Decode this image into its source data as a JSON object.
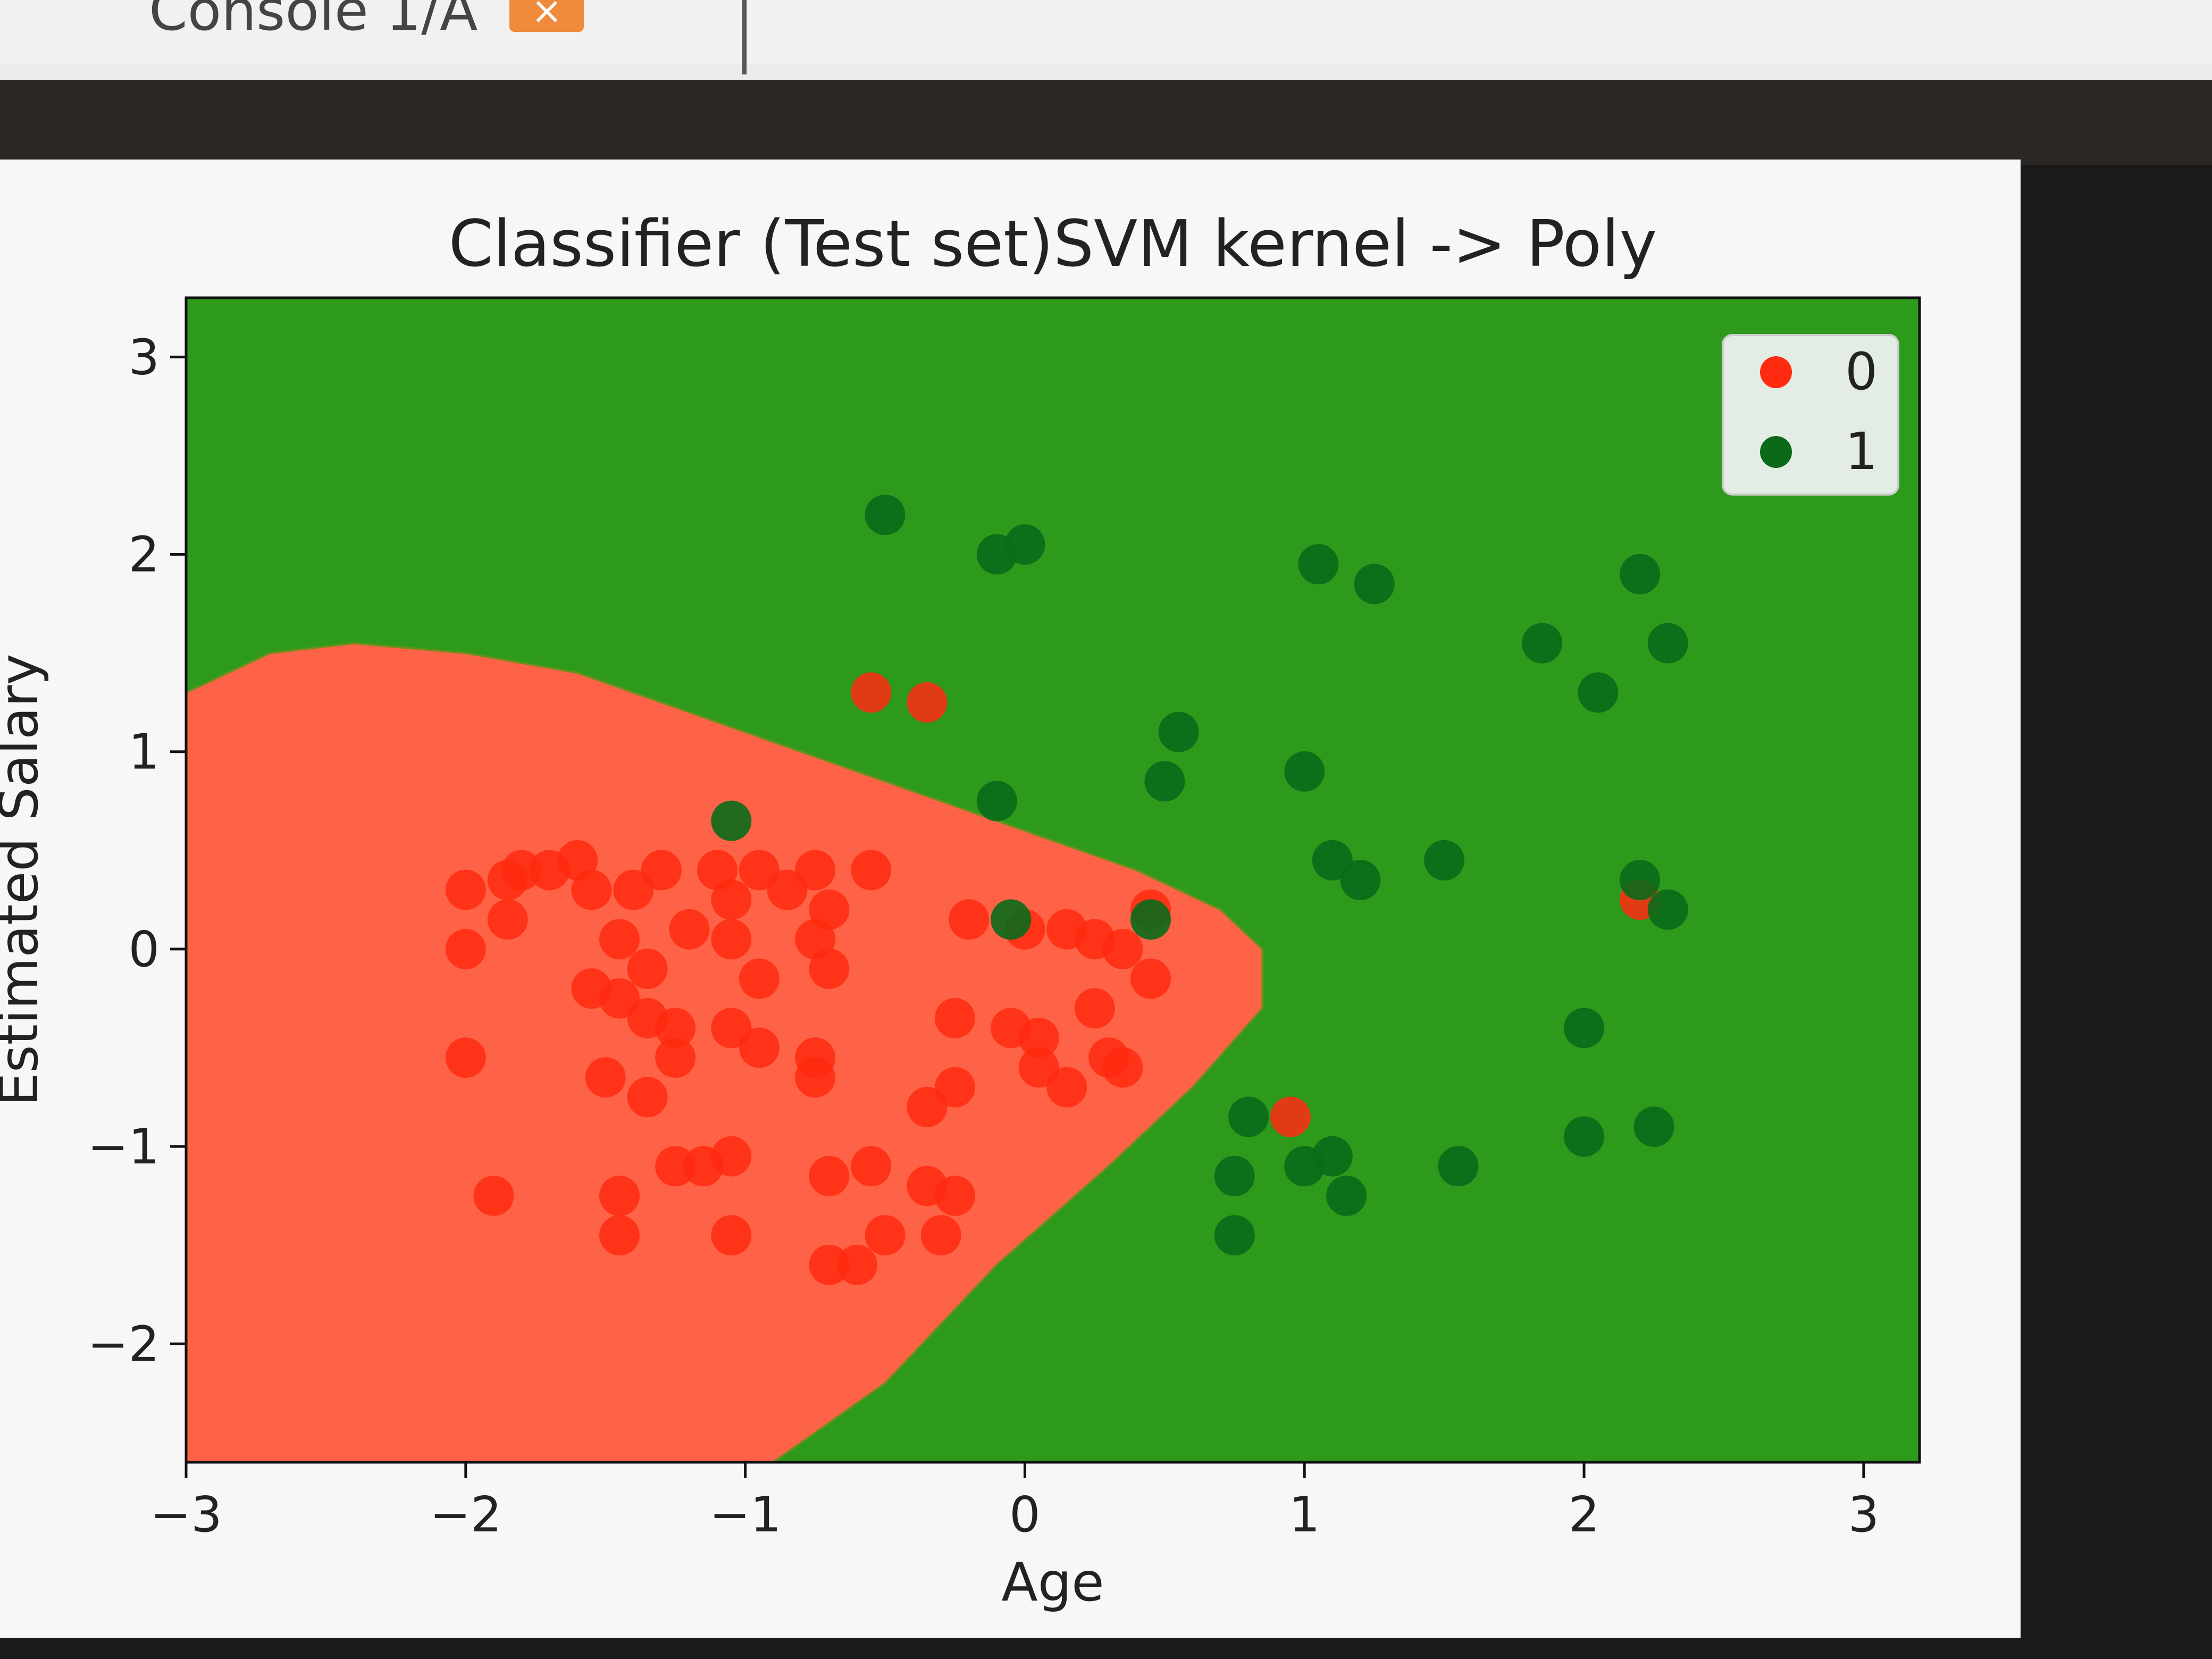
{
  "tab": {
    "label": "Console 1/A",
    "close": "×"
  },
  "chart_data": {
    "type": "scatter",
    "title": "Classifier (Test set)SVM kernel -> Poly",
    "xlabel": "Age",
    "ylabel": "Estimated Salary",
    "xlim": [
      -3,
      3.2
    ],
    "ylim": [
      -2.6,
      3.3
    ],
    "xticks": [
      -3,
      -2,
      -1,
      0,
      1,
      2,
      3
    ],
    "yticks": [
      -2,
      -1,
      0,
      1,
      2,
      3
    ],
    "xtick_labels": [
      "−3",
      "−2",
      "−1",
      "0",
      "1",
      "2",
      "3"
    ],
    "ytick_labels": [
      "−2",
      "−1",
      "0",
      "1",
      "2",
      "3"
    ],
    "legend_placement": "top-right",
    "region_colors": {
      "0": "#ff6347",
      "1": "#2e9a1c"
    },
    "decision_boundary": [
      [
        -3.0,
        1.3
      ],
      [
        -2.7,
        1.5
      ],
      [
        -2.4,
        1.55
      ],
      [
        -2.0,
        1.5
      ],
      [
        -1.6,
        1.4
      ],
      [
        -1.2,
        1.2
      ],
      [
        -0.8,
        1.0
      ],
      [
        -0.4,
        0.8
      ],
      [
        0.0,
        0.6
      ],
      [
        0.4,
        0.4
      ],
      [
        0.7,
        0.2
      ],
      [
        0.85,
        0.0
      ],
      [
        0.85,
        -0.3
      ],
      [
        0.6,
        -0.7
      ],
      [
        0.3,
        -1.1
      ],
      [
        -0.1,
        -1.6
      ],
      [
        -0.5,
        -2.2
      ],
      [
        -0.9,
        -2.6
      ],
      [
        -3.0,
        -2.6
      ]
    ],
    "series": [
      {
        "name": "0",
        "color": "#ff2a10",
        "x": [
          -2.0,
          -1.85,
          -1.8,
          -1.7,
          -1.6,
          -1.55,
          -1.4,
          -1.3,
          -1.1,
          -1.05,
          -0.95,
          -0.85,
          -0.75,
          -0.7,
          -0.55,
          -2.0,
          -1.85,
          -1.45,
          -1.35,
          -1.2,
          -1.05,
          -0.95,
          -0.75,
          -0.7,
          -0.2,
          0.0,
          0.15,
          0.25,
          0.35,
          0.45,
          -2.0,
          -1.55,
          -1.45,
          -1.35,
          -1.25,
          -1.05,
          -0.95,
          -0.75,
          -0.25,
          -0.05,
          0.05,
          0.25,
          0.35,
          0.45,
          -1.5,
          -1.35,
          -1.25,
          -0.75,
          -0.35,
          -0.25,
          0.05,
          0.15,
          0.3,
          -1.9,
          -1.45,
          -1.25,
          -1.15,
          -1.05,
          -0.7,
          -0.55,
          -0.35,
          -0.25,
          -1.45,
          -1.05,
          -0.7,
          -0.6,
          -0.5,
          -0.3,
          -0.55,
          -0.35,
          0.95,
          2.2
        ],
        "y": [
          0.3,
          0.35,
          0.4,
          0.4,
          0.45,
          0.3,
          0.3,
          0.4,
          0.4,
          0.25,
          0.4,
          0.3,
          0.4,
          0.2,
          0.4,
          0.0,
          0.15,
          0.05,
          -0.1,
          0.1,
          0.05,
          -0.15,
          0.05,
          -0.1,
          0.15,
          0.1,
          0.1,
          0.05,
          0.0,
          0.2,
          -0.55,
          -0.2,
          -0.25,
          -0.35,
          -0.4,
          -0.4,
          -0.5,
          -0.55,
          -0.35,
          -0.4,
          -0.45,
          -0.3,
          -0.6,
          -0.15,
          -0.65,
          -0.75,
          -0.55,
          -0.65,
          -0.8,
          -0.7,
          -0.6,
          -0.7,
          -0.55,
          -1.25,
          -1.25,
          -1.1,
          -1.1,
          -1.05,
          -1.15,
          -1.1,
          -1.2,
          -1.25,
          -1.45,
          -1.45,
          -1.6,
          -1.6,
          -1.45,
          -1.45,
          1.3,
          1.25,
          -0.85,
          0.25
        ]
      },
      {
        "name": "1",
        "color": "#0a6a1a",
        "x": [
          -0.5,
          -0.1,
          0.0,
          1.05,
          1.25,
          2.2,
          1.85,
          2.3,
          2.05,
          0.55,
          0.5,
          1.0,
          -0.1,
          -1.05,
          1.1,
          1.2,
          1.5,
          2.2,
          2.3,
          -0.05,
          0.45,
          2.0,
          2.0,
          2.25,
          0.8,
          0.75,
          1.0,
          1.1,
          1.15,
          1.55,
          0.75
        ],
        "y": [
          2.2,
          2.0,
          2.05,
          1.95,
          1.85,
          1.9,
          1.55,
          1.55,
          1.3,
          1.1,
          0.85,
          0.9,
          0.75,
          0.65,
          0.45,
          0.35,
          0.45,
          0.35,
          0.2,
          0.15,
          0.15,
          -0.4,
          -0.95,
          -0.9,
          -0.85,
          -1.15,
          -1.1,
          -1.05,
          -1.25,
          -1.1,
          -1.45
        ]
      }
    ]
  }
}
